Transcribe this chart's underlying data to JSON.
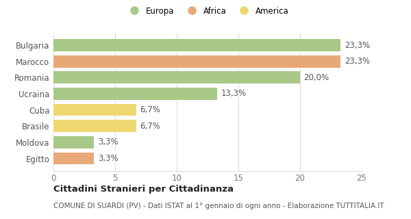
{
  "categories": [
    "Egitto",
    "Moldova",
    "Brasile",
    "Cuba",
    "Ucraina",
    "Romania",
    "Marocco",
    "Bulgaria"
  ],
  "values": [
    3.3,
    3.3,
    6.7,
    6.7,
    13.3,
    20.0,
    23.3,
    23.3
  ],
  "labels": [
    "3,3%",
    "3,3%",
    "6,7%",
    "6,7%",
    "13,3%",
    "20,0%",
    "23,3%",
    "23,3%"
  ],
  "colors": [
    "#E8A878",
    "#A8C888",
    "#F0D870",
    "#F0D870",
    "#A8C888",
    "#A8C888",
    "#E8A878",
    "#A8C888"
  ],
  "legend": [
    {
      "label": "Europa",
      "color": "#A8C888"
    },
    {
      "label": "Africa",
      "color": "#E8A878"
    },
    {
      "label": "America",
      "color": "#F0D870"
    }
  ],
  "xlim": [
    0,
    25
  ],
  "xticks": [
    0,
    5,
    10,
    15,
    20,
    25
  ],
  "title_bold": "Cittadini Stranieri per Cittadinanza",
  "subtitle": "COMUNE DI SUARDI (PV) - Dati ISTAT al 1° gennaio di ogni anno - Elaborazione TUTTITALIA.IT",
  "background_color": "#ffffff",
  "grid_color": "#dddddd",
  "bar_height": 0.75,
  "label_fontsize": 8.5,
  "tick_fontsize": 8.5,
  "title_fontsize": 9.5,
  "subtitle_fontsize": 7.5
}
